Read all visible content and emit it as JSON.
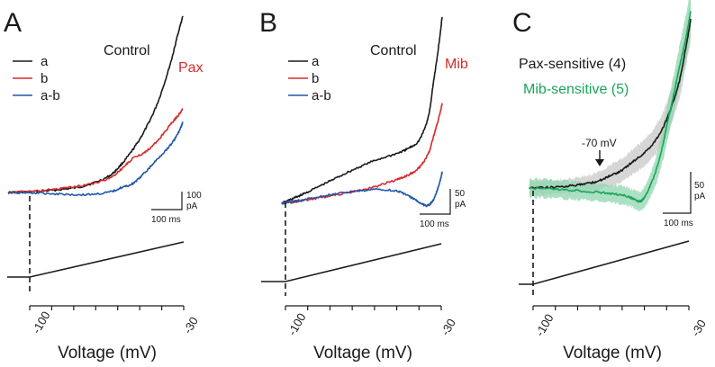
{
  "colors": {
    "black": "#1a1a1a",
    "red": "#d62b2b",
    "blue": "#2457a6",
    "green": "#1aa55a",
    "green_band": "#8fd6ae",
    "gray_band": "#c8c8c8"
  },
  "chart_data": [
    {
      "panel": "A",
      "type": "line",
      "xlabel": "Voltage (mV)",
      "x_ticks": [
        "-100",
        "-30"
      ],
      "xlim": [
        -100,
        -30
      ],
      "condition_label": "Control",
      "drug_label": "Pax",
      "legend": [
        "a",
        "b",
        "a-b"
      ],
      "scale_bar": {
        "current": "100",
        "current_unit": "pA",
        "time": "100 ms"
      },
      "series": [
        {
          "name": "a",
          "color": "black",
          "x": [
            -100,
            -90,
            -80,
            -70,
            -60,
            -55,
            -50,
            -45,
            -40,
            -35,
            -32,
            -30
          ],
          "y": [
            0,
            2,
            6,
            14,
            35,
            60,
            95,
            140,
            200,
            285,
            350,
            390
          ]
        },
        {
          "name": "b",
          "color": "red",
          "x": [
            -100,
            -90,
            -80,
            -70,
            -60,
            -55,
            -50,
            -45,
            -40,
            -35,
            -32,
            -30
          ],
          "y": [
            0,
            3,
            8,
            16,
            30,
            50,
            75,
            90,
            115,
            150,
            170,
            185
          ]
        },
        {
          "name": "a-b",
          "color": "blue",
          "x": [
            -100,
            -90,
            -80,
            -70,
            -60,
            -55,
            -50,
            -45,
            -40,
            -35,
            -32,
            -30
          ],
          "y": [
            0,
            -1,
            -3,
            -5,
            0,
            10,
            20,
            45,
            75,
            105,
            130,
            155
          ]
        }
      ]
    },
    {
      "panel": "B",
      "type": "line",
      "xlabel": "Voltage (mV)",
      "x_ticks": [
        "-100",
        "-30"
      ],
      "xlim": [
        -100,
        -30
      ],
      "condition_label": "Control",
      "drug_label": "Mib",
      "legend": [
        "a",
        "b",
        "a-b"
      ],
      "scale_bar": {
        "current": "50",
        "current_unit": "pA",
        "time": "100 ms"
      },
      "series": [
        {
          "name": "a",
          "color": "black",
          "x": [
            -100,
            -95,
            -90,
            -80,
            -70,
            -60,
            -50,
            -45,
            -40,
            -36,
            -34,
            -32,
            -30
          ],
          "y": [
            0,
            8,
            16,
            34,
            52,
            68,
            80,
            88,
            102,
            140,
            190,
            240,
            300
          ]
        },
        {
          "name": "b",
          "color": "red",
          "x": [
            -100,
            -95,
            -90,
            -80,
            -70,
            -60,
            -50,
            -45,
            -40,
            -36,
            -34,
            -32,
            -30
          ],
          "y": [
            0,
            2,
            5,
            11,
            18,
            26,
            38,
            45,
            58,
            80,
            105,
            130,
            160
          ]
        },
        {
          "name": "a-b",
          "color": "blue",
          "x": [
            -100,
            -95,
            -90,
            -80,
            -70,
            -60,
            -50,
            -45,
            -40,
            -37,
            -35,
            -33,
            -31,
            -30
          ],
          "y": [
            0,
            3,
            6,
            13,
            18,
            22,
            20,
            12,
            2,
            -4,
            0,
            12,
            35,
            50
          ]
        }
      ]
    },
    {
      "panel": "C",
      "type": "line",
      "xlabel": "Voltage (mV)",
      "x_ticks": [
        "-100",
        "-30"
      ],
      "xlim": [
        -100,
        -30
      ],
      "annotation": "-70 mV",
      "annotation_x": -70,
      "scale_bar": {
        "current": "50",
        "current_unit": "pA",
        "time": "100 ms"
      },
      "series": [
        {
          "name": "Pax-sensitive (4)",
          "color": "black",
          "band": "gray_band",
          "x": [
            -100,
            -90,
            -80,
            -75,
            -70,
            -65,
            -60,
            -55,
            -50,
            -45,
            -40,
            -35,
            -32,
            -30
          ],
          "y": [
            0,
            1,
            3,
            5,
            8,
            14,
            20,
            30,
            40,
            55,
            80,
            120,
            160,
            190
          ],
          "sem": [
            8,
            8,
            8,
            9,
            10,
            12,
            13,
            14,
            15,
            16,
            18,
            20,
            22,
            24
          ]
        },
        {
          "name": "Mib-sensitive (5)",
          "color": "green",
          "band": "green_band",
          "x": [
            -100,
            -90,
            -80,
            -70,
            -60,
            -55,
            -52,
            -50,
            -48,
            -45,
            -42,
            -40,
            -37,
            -35,
            -32,
            -30
          ],
          "y": [
            0,
            -1,
            -3,
            -5,
            -8,
            -12,
            -15,
            -10,
            0,
            20,
            50,
            75,
            110,
            135,
            170,
            200
          ],
          "sem": [
            10,
            10,
            10,
            10,
            10,
            10,
            11,
            12,
            13,
            15,
            18,
            20,
            22,
            24,
            26,
            28
          ]
        }
      ]
    }
  ]
}
